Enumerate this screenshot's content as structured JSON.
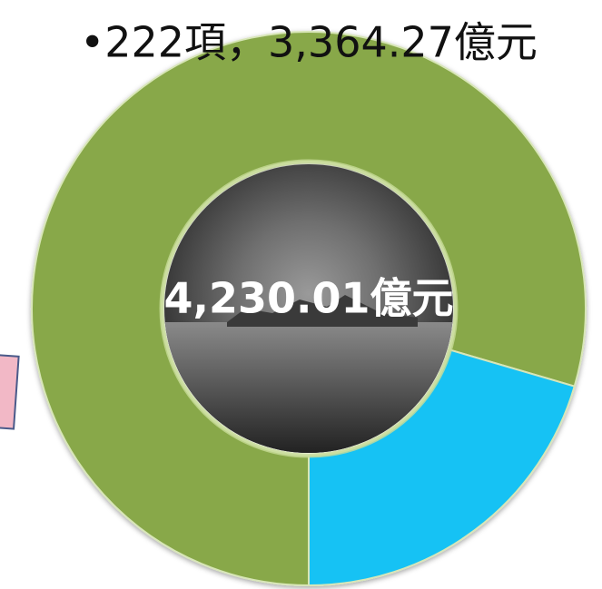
{
  "chart_data": {
    "type": "donut",
    "title": "•222項，3,364.27億元",
    "center_label": "4,230.01億元",
    "values": [
      3364.27,
      865.74
    ],
    "colors": [
      "#88a84a",
      "#12c2f4"
    ]
  }
}
